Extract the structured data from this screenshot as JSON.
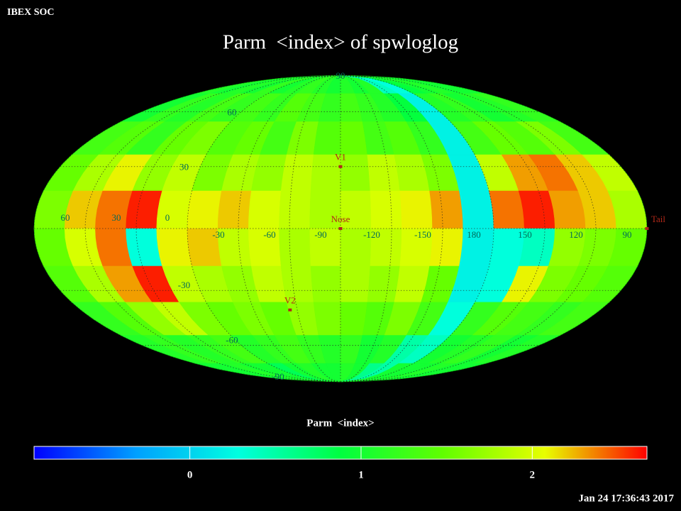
{
  "header": {
    "org": "IBEX SOC",
    "title": "Parm  <index> of spwloglog",
    "timestamp": "Jan 24 17:36:43 2017"
  },
  "map": {
    "projection": "mollweide",
    "center_longitude": -105,
    "lon_ticks": [
      60,
      30,
      0,
      -30,
      -60,
      -90,
      -120,
      -150,
      180,
      150,
      120,
      90
    ],
    "lat_ticks": [
      90,
      60,
      30,
      -30,
      -60,
      -90
    ],
    "markers": [
      {
        "label": "V1",
        "lon": -105,
        "lat": 30
      },
      {
        "label": "Nose",
        "lon": -105,
        "lat": 0
      },
      {
        "label": "V2",
        "lon": -70,
        "lat": -40
      },
      {
        "label": "Tail",
        "lon": 75,
        "lat": 0
      }
    ],
    "grid": [
      [
        1.1,
        1.0,
        1.1,
        1.0,
        1.2,
        1.0,
        1.1,
        1.2,
        1.1,
        1.0,
        1.1,
        1.0,
        1.1,
        0.4,
        0.3,
        0.9,
        1.0,
        1.1,
        1.0,
        1.0
      ],
      [
        1.0,
        1.2,
        1.1,
        1.3,
        1.2,
        1.3,
        1.2,
        1.4,
        1.3,
        1.2,
        1.3,
        1.2,
        1.1,
        0.9,
        0.2,
        1.1,
        1.2,
        1.0,
        1.1,
        1.2
      ],
      [
        1.3,
        1.4,
        1.2,
        1.5,
        1.6,
        1.4,
        1.5,
        1.3,
        1.6,
        1.4,
        1.5,
        1.3,
        1.4,
        1.2,
        0.2,
        1.3,
        1.5,
        1.4,
        1.6,
        1.3
      ],
      [
        1.5,
        1.8,
        2.1,
        1.7,
        1.9,
        1.6,
        1.8,
        1.7,
        1.9,
        1.8,
        1.7,
        1.9,
        1.8,
        1.6,
        0.2,
        1.9,
        2.3,
        2.4,
        2.2,
        1.9
      ],
      [
        1.6,
        2.2,
        2.4,
        2.6,
        2.0,
        2.1,
        2.2,
        2.0,
        1.9,
        1.8,
        1.9,
        2.0,
        2.1,
        2.3,
        0.2,
        2.4,
        2.6,
        2.3,
        2.2,
        1.8
      ],
      [
        1.5,
        2.0,
        2.4,
        0.3,
        2.1,
        2.2,
        1.9,
        2.0,
        1.8,
        1.9,
        1.8,
        1.9,
        2.0,
        2.1,
        0.2,
        0.3,
        0.4,
        1.7,
        1.6,
        1.5
      ],
      [
        1.4,
        1.8,
        2.3,
        2.6,
        1.9,
        1.8,
        1.7,
        1.9,
        1.8,
        1.7,
        1.8,
        1.7,
        1.9,
        1.5,
        0.2,
        0.3,
        2.1,
        1.6,
        1.5,
        1.4
      ],
      [
        1.2,
        1.4,
        1.7,
        1.9,
        1.6,
        1.5,
        1.6,
        1.5,
        1.7,
        1.6,
        1.5,
        1.4,
        1.6,
        1.3,
        0.3,
        1.2,
        1.4,
        1.3,
        1.2,
        1.3
      ],
      [
        1.1,
        1.2,
        1.1,
        1.2,
        1.3,
        1.1,
        1.2,
        1.3,
        1.2,
        1.1,
        1.2,
        1.0,
        1.1,
        0.5,
        0.4,
        1.0,
        1.1,
        1.2,
        1.0,
        1.1
      ],
      [
        1.0,
        1.0,
        1.1,
        1.0,
        1.0,
        0.8,
        1.0,
        1.1,
        1.0,
        1.0,
        1.1,
        1.0,
        0.6,
        0.5,
        1.0,
        1.0,
        1.0,
        1.1,
        1.0,
        1.0
      ]
    ]
  },
  "colorbar": {
    "label": "Parm  <index>",
    "range": [
      -0.91,
      2.67
    ],
    "ticks": [
      0,
      1,
      2
    ],
    "colormap": [
      "#0000ff",
      "#00a0ff",
      "#00ffe0",
      "#00ff40",
      "#60ff00",
      "#e8ff00",
      "#ff0000"
    ]
  }
}
